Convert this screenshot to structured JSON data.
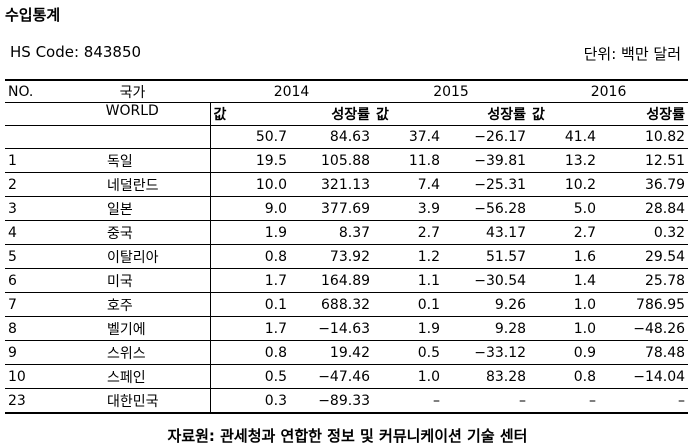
{
  "title": "수입통계",
  "hs_code": "HS Code: 843850",
  "unit": "단위: 백만 달러",
  "header": {
    "no": "NO.",
    "country": "국가",
    "years": [
      "2014",
      "2015",
      "2016"
    ],
    "world": "WORLD",
    "value": "값",
    "growth": "성장률"
  },
  "world_row": [
    "50.7",
    "84.63",
    "37.4",
    "−26.17",
    "41.4",
    "10.82"
  ],
  "rows": [
    {
      "no": "1",
      "country": "독일",
      "v": [
        "19.5",
        "105.88",
        "11.8",
        "−39.81",
        "13.2",
        "12.51"
      ]
    },
    {
      "no": "2",
      "country": "네덜란드",
      "v": [
        "10.0",
        "321.13",
        "7.4",
        "−25.31",
        "10.2",
        "36.79"
      ]
    },
    {
      "no": "3",
      "country": "일본",
      "v": [
        "9.0",
        "377.69",
        "3.9",
        "−56.28",
        "5.0",
        "28.84"
      ]
    },
    {
      "no": "4",
      "country": "중국",
      "v": [
        "1.9",
        "8.37",
        "2.7",
        "43.17",
        "2.7",
        "0.32"
      ]
    },
    {
      "no": "5",
      "country": "이탈리아",
      "v": [
        "0.8",
        "73.92",
        "1.2",
        "51.57",
        "1.6",
        "29.54"
      ]
    },
    {
      "no": "6",
      "country": "미국",
      "v": [
        "1.7",
        "164.89",
        "1.1",
        "−30.54",
        "1.4",
        "25.78"
      ]
    },
    {
      "no": "7",
      "country": "호주",
      "v": [
        "0.1",
        "688.32",
        "0.1",
        "9.26",
        "1.0",
        "786.95"
      ]
    },
    {
      "no": "8",
      "country": "벨기에",
      "v": [
        "1.7",
        "−14.63",
        "1.9",
        "9.28",
        "1.0",
        "−48.26"
      ]
    },
    {
      "no": "9",
      "country": "스위스",
      "v": [
        "0.8",
        "19.42",
        "0.5",
        "−33.12",
        "0.9",
        "78.48"
      ]
    },
    {
      "no": "10",
      "country": "스페인",
      "v": [
        "0.5",
        "−47.46",
        "1.0",
        "83.28",
        "0.8",
        "−14.04"
      ]
    },
    {
      "no": "23",
      "country": "대한민국",
      "v": [
        "0.3",
        "−89.33",
        "–",
        "–",
        "–",
        "–"
      ]
    }
  ],
  "footer": "자료원: 관세청과 연합한 정보 및 커뮤니케이션 기술 센터"
}
